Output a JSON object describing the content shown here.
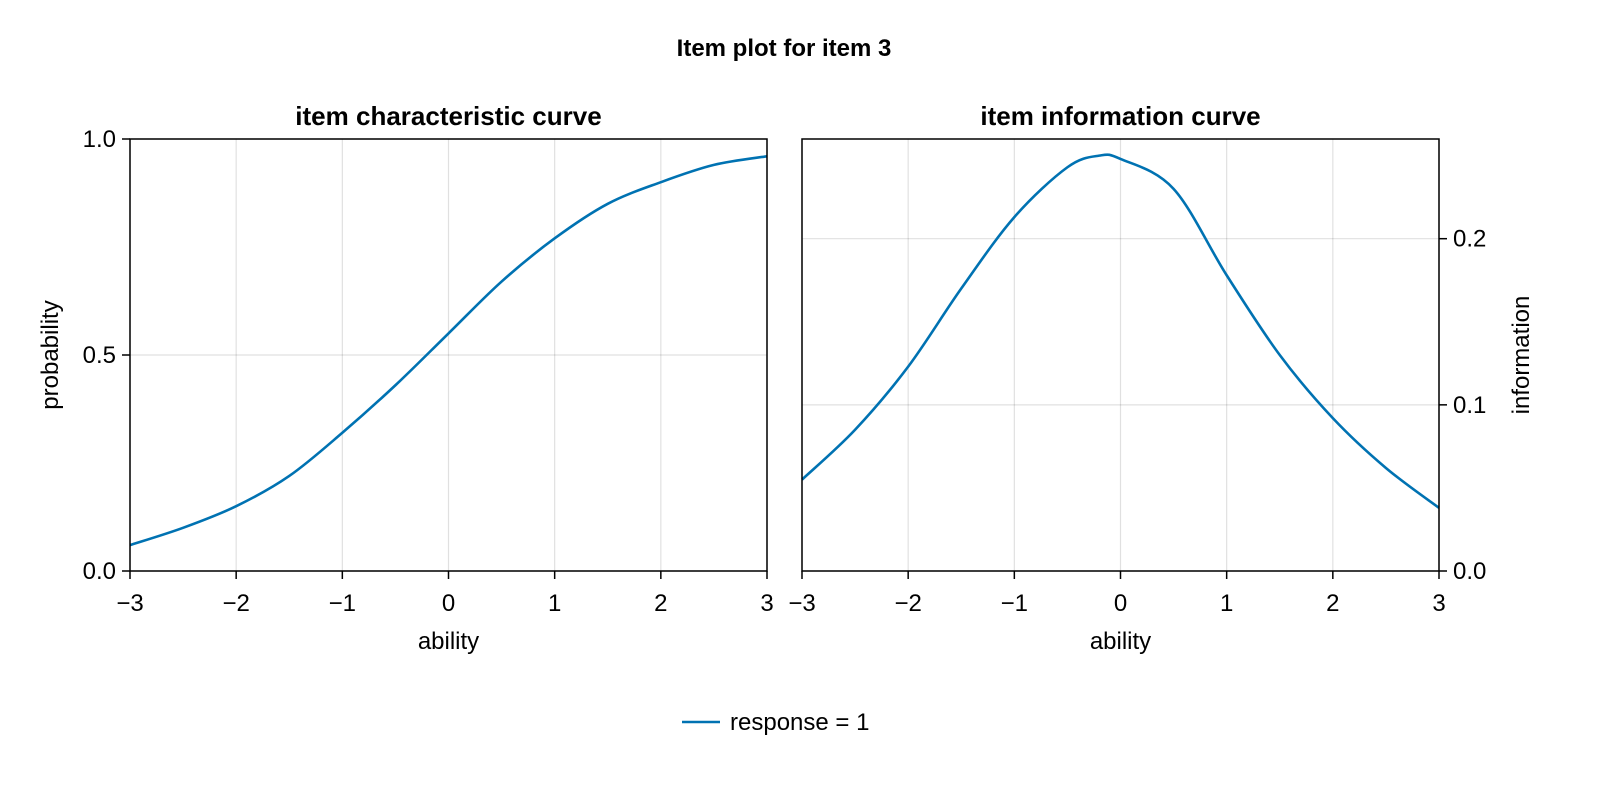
{
  "figure_title": "Item plot for item 3",
  "legend": {
    "placement": "bottom-center",
    "entries": [
      {
        "label": "response = 1",
        "color": "#0072b2"
      }
    ]
  },
  "chart_data": [
    {
      "type": "line",
      "title": "item characteristic curve",
      "xlabel": "ability",
      "ylabel": "probability",
      "xlim": [
        -3,
        3
      ],
      "ylim": [
        0,
        1
      ],
      "xticks": [
        "−3",
        "−2",
        "−1",
        "0",
        "1",
        "2",
        "3"
      ],
      "xtick_values": [
        -3,
        -2,
        -1,
        0,
        1,
        2,
        3
      ],
      "yticks": [
        "0.0",
        "0.5",
        "1.0"
      ],
      "ytick_values": [
        0,
        0.5,
        1
      ],
      "y_axis_side": "left",
      "grid": true,
      "series": [
        {
          "name": "response = 1",
          "color": "#0072b2",
          "x": [
            -3,
            -2.5,
            -2,
            -1.5,
            -1,
            -0.5,
            0,
            0.5,
            1,
            1.5,
            2,
            2.5,
            3
          ],
          "y": [
            0.06,
            0.1,
            0.15,
            0.22,
            0.32,
            0.43,
            0.55,
            0.67,
            0.77,
            0.85,
            0.9,
            0.94,
            0.96
          ]
        }
      ]
    },
    {
      "type": "line",
      "title": "item information curve",
      "xlabel": "ability",
      "ylabel": "information",
      "xlim": [
        -3,
        3
      ],
      "ylim": [
        0,
        0.26
      ],
      "xticks": [
        "−3",
        "−2",
        "−1",
        "0",
        "1",
        "2",
        "3"
      ],
      "xtick_values": [
        -3,
        -2,
        -1,
        0,
        1,
        2,
        3
      ],
      "yticks": [
        "0.0",
        "0.1",
        "0.2"
      ],
      "ytick_values": [
        0,
        0.1,
        0.2
      ],
      "y_axis_side": "right",
      "grid": true,
      "series": [
        {
          "name": "response = 1",
          "color": "#0072b2",
          "x": [
            -3,
            -2.5,
            -2,
            -1.5,
            -1,
            -0.5,
            -0.2,
            0,
            0.5,
            1,
            1.5,
            2,
            2.5,
            3
          ],
          "y": [
            0.055,
            0.085,
            0.123,
            0.17,
            0.213,
            0.243,
            0.25,
            0.248,
            0.23,
            0.178,
            0.13,
            0.092,
            0.062,
            0.038
          ]
        }
      ]
    }
  ]
}
